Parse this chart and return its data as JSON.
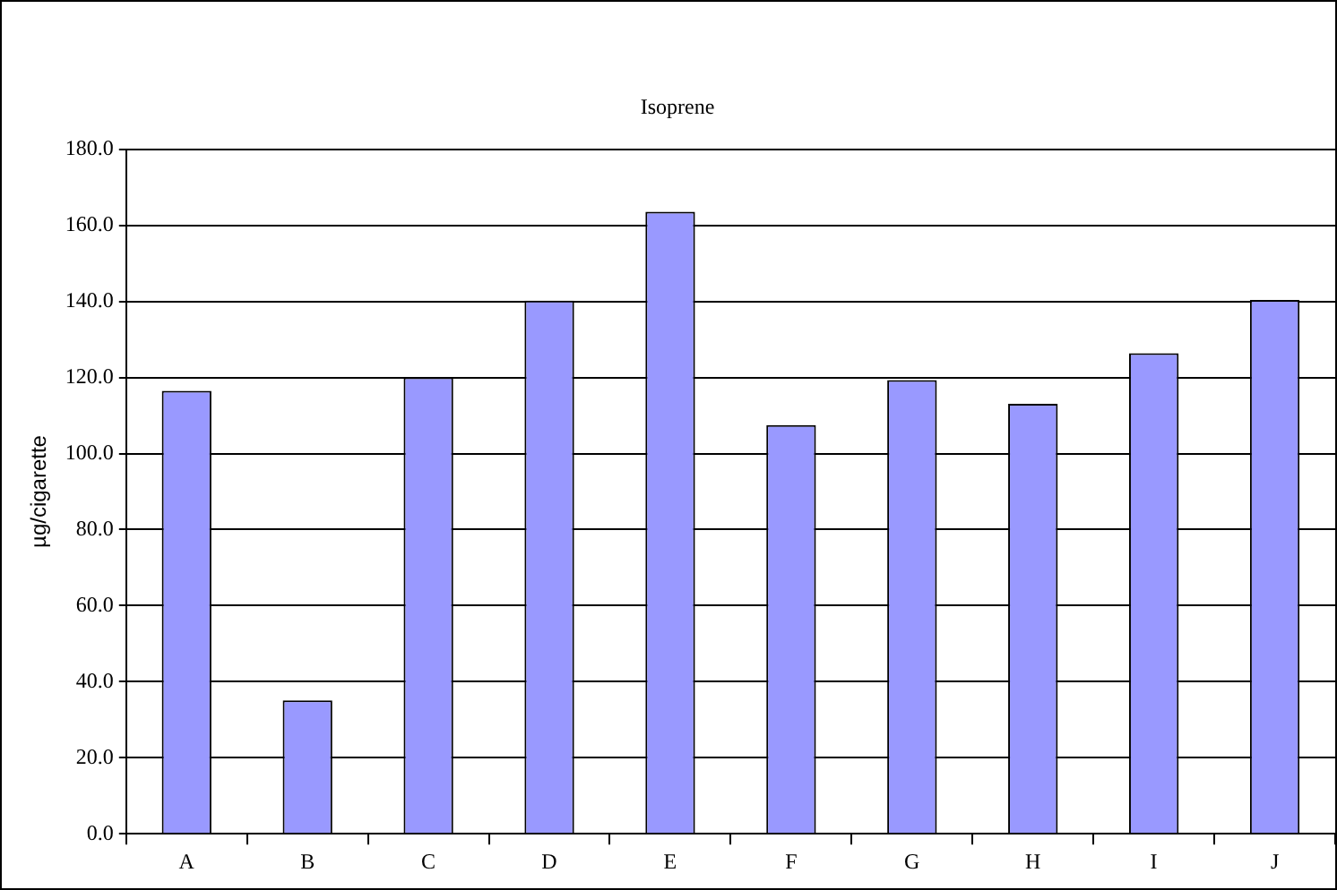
{
  "chart_data": {
    "type": "bar",
    "title": "Isoprene",
    "ylabel": "µg/cigarette",
    "categories": [
      "A",
      "B",
      "C",
      "D",
      "E",
      "F",
      "G",
      "H",
      "I",
      "J"
    ],
    "values": [
      116.5,
      35.1,
      120.0,
      140.2,
      163.6,
      107.5,
      119.3,
      113.1,
      126.4,
      140.4
    ],
    "color": "#9999ff",
    "ylim": [
      0,
      180
    ],
    "yticks": [
      {
        "value": 0,
        "label": "0.0"
      },
      {
        "value": 20,
        "label": "20.0"
      },
      {
        "value": 40,
        "label": "40.0"
      },
      {
        "value": 60,
        "label": "60.0"
      },
      {
        "value": 80,
        "label": "80.0"
      },
      {
        "value": 100,
        "label": "100.0"
      },
      {
        "value": 120,
        "label": "120.0"
      },
      {
        "value": 140,
        "label": "140.0"
      },
      {
        "value": 160,
        "label": "160.0"
      },
      {
        "value": 180,
        "label": "180.0"
      }
    ],
    "grid": "y",
    "legend": false
  }
}
